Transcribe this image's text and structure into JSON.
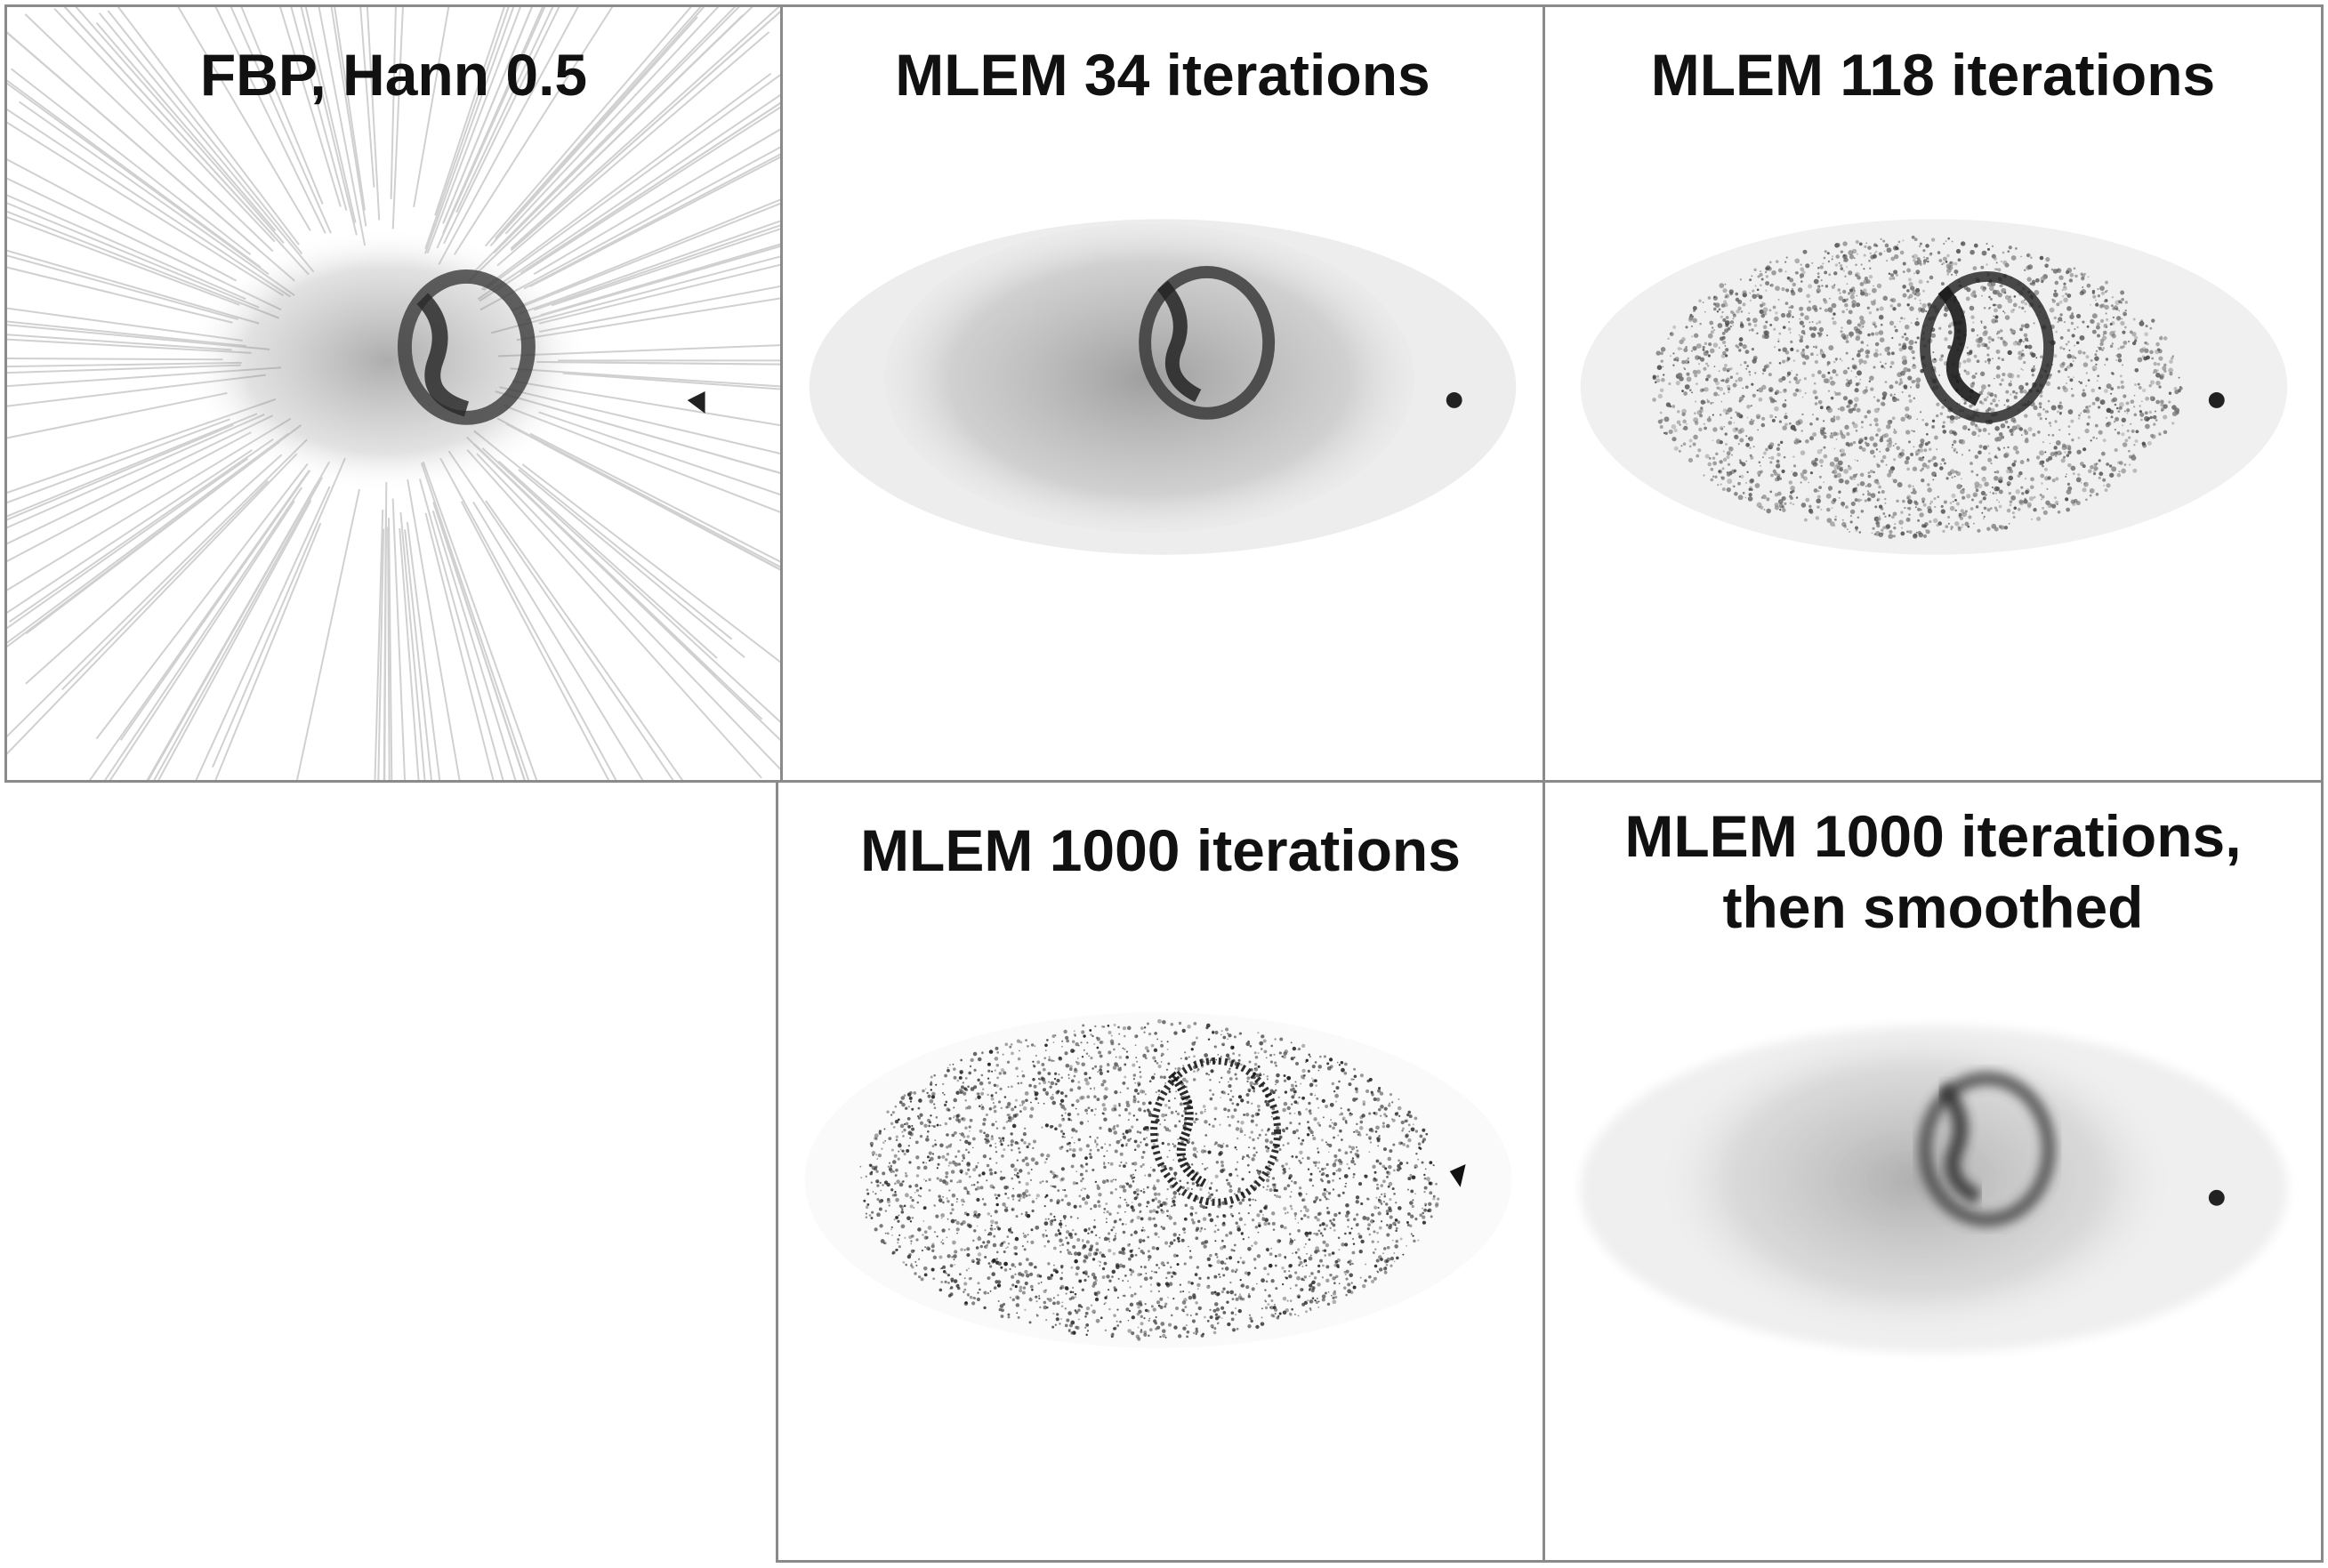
{
  "panels": [
    {
      "id": "fbp",
      "title": "FBP, Hann 0.5",
      "title_line2": ""
    },
    {
      "id": "mlem34",
      "title": "MLEM 34 iterations",
      "title_line2": ""
    },
    {
      "id": "mlem118",
      "title": "MLEM 118 iterations",
      "title_line2": ""
    },
    {
      "id": "mlem1000",
      "title": "MLEM 1000 iterations",
      "title_line2": ""
    },
    {
      "id": "mlem1000s",
      "title": "MLEM 1000 iterations,",
      "title_line2": "then smoothed"
    }
  ],
  "colors": {
    "border": "#8a8a8a",
    "ink": "#111111",
    "background": "#ffffff"
  }
}
